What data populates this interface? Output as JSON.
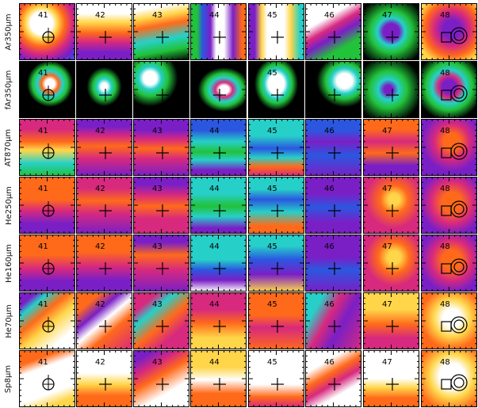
{
  "figure": {
    "rows": [
      {
        "label": "Ar350μm",
        "ids": [
          "41",
          "42",
          "43",
          "44",
          "45",
          "46",
          "47",
          "48"
        ]
      },
      {
        "label": "fAr350μm",
        "ids": [
          "41",
          "",
          "",
          "",
          "45",
          "",
          "",
          "48"
        ]
      },
      {
        "label": "AT870μm",
        "ids": [
          "41",
          "42",
          "43",
          "44",
          "45",
          "46",
          "47",
          "48"
        ]
      },
      {
        "label": "He250μm",
        "ids": [
          "41",
          "42",
          "43",
          "44",
          "45",
          "46",
          "47",
          "48"
        ]
      },
      {
        "label": "He160μm",
        "ids": [
          "41",
          "42",
          "43",
          "44",
          "45",
          "46",
          "47",
          "48"
        ]
      },
      {
        "label": "He70μm",
        "ids": [
          "41",
          "42",
          "43",
          "44",
          "45",
          "46",
          "47",
          "48"
        ]
      },
      {
        "label": "Sp8μm",
        "ids": [
          "41",
          "42",
          "43",
          "44",
          "45",
          "46",
          "47",
          "48"
        ]
      }
    ],
    "colors": {
      "purple": "#7a1fc6",
      "magenta": "#d7297e",
      "orange": "#ff6a1a",
      "yellow": "#ffd64a",
      "white": "#ffffff",
      "cyan": "#26d0c8",
      "green": "#22c23a",
      "blue": "#2b57e0",
      "black": "#000000"
    }
  }
}
